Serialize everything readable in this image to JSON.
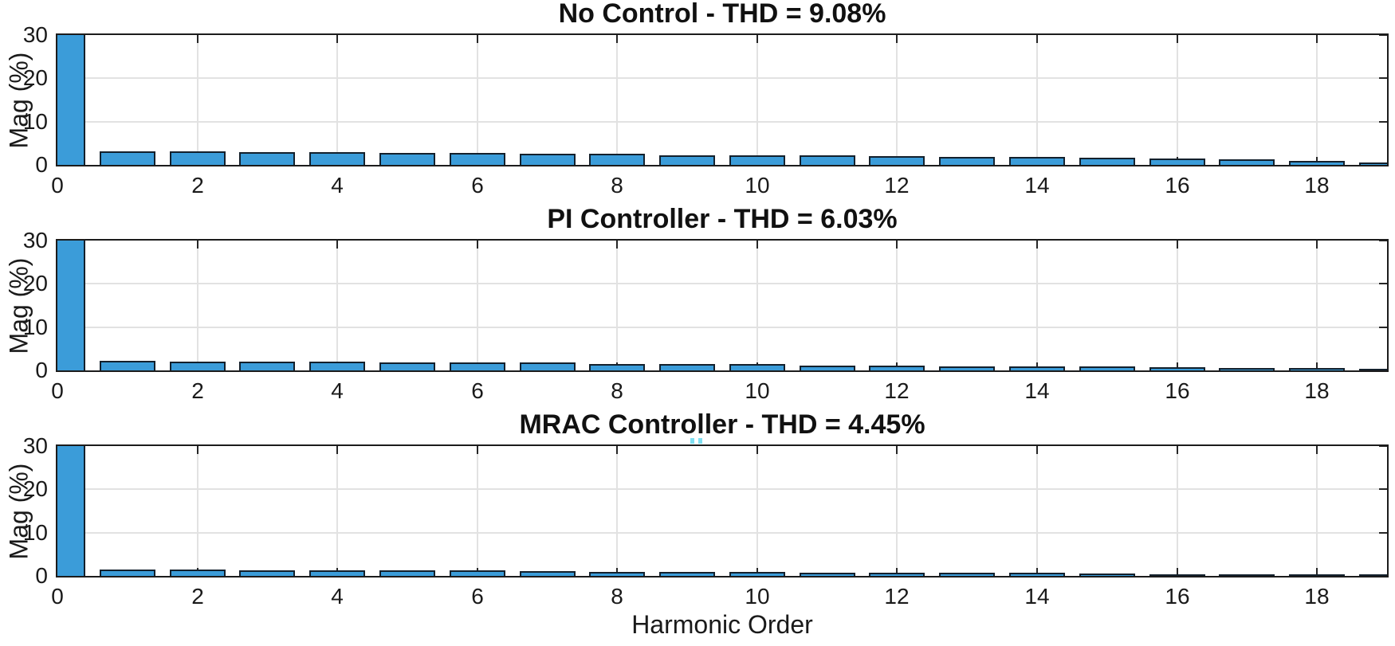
{
  "figure": {
    "background": "#ffffff",
    "xlabel": "Harmonic Order",
    "ylabel": "Mag (%)",
    "axis_color": "#1c1c1c",
    "grid_color": "#e2e2e2",
    "bar_fill": "#3b9cd9",
    "bar_edge": "#13202c",
    "text_color": "#1a1a1a"
  },
  "chart_data": [
    {
      "type": "bar",
      "title": "No Control - THD = 9.08%",
      "controller": "No Control",
      "thd_percent": "9.08",
      "ylabel": "Mag (%)",
      "xlabel": "Harmonic Order",
      "xlim": [
        0,
        19
      ],
      "ylim": [
        0,
        30
      ],
      "xticks": [
        0,
        2,
        4,
        6,
        8,
        10,
        12,
        14,
        16,
        18
      ],
      "yticks": [
        0,
        10,
        20,
        30
      ],
      "grid": true,
      "legend": "none",
      "bar_width": 0.8,
      "x": [
        0,
        1,
        2,
        3,
        4,
        5,
        6,
        7,
        8,
        9,
        10,
        11,
        12,
        13,
        14,
        15,
        16,
        17,
        18,
        19
      ],
      "values": [
        30,
        3.2,
        3.2,
        3.0,
        3.0,
        2.8,
        2.8,
        2.5,
        2.5,
        2.3,
        2.2,
        2.2,
        2.0,
        1.9,
        1.8,
        1.6,
        1.4,
        1.2,
        0.9,
        0.6
      ],
      "fundamental_clipped": true,
      "note": "bar at harmonic 0 extends beyond the y-axis limit and is clipped at 30; bars at 0 and 19 are cut by the axis edges"
    },
    {
      "type": "bar",
      "title": "PI Controller - THD = 6.03%",
      "controller": "PI Controller",
      "thd_percent": "6.03",
      "ylabel": "Mag (%)",
      "xlabel": "Harmonic Order",
      "xlim": [
        0,
        19
      ],
      "ylim": [
        0,
        30
      ],
      "xticks": [
        0,
        2,
        4,
        6,
        8,
        10,
        12,
        14,
        16,
        18
      ],
      "yticks": [
        0,
        10,
        20,
        30
      ],
      "grid": true,
      "legend": "none",
      "bar_width": 0.8,
      "x": [
        0,
        1,
        2,
        3,
        4,
        5,
        6,
        7,
        8,
        9,
        10,
        11,
        12,
        13,
        14,
        15,
        16,
        17,
        18,
        19
      ],
      "values": [
        30,
        2.2,
        2.1,
        2.1,
        2.0,
        1.9,
        1.8,
        1.8,
        1.5,
        1.4,
        1.4,
        1.1,
        1.1,
        1.0,
        1.0,
        0.9,
        0.7,
        0.6,
        0.5,
        0.3
      ],
      "fundamental_clipped": true,
      "note": "bar at harmonic 0 extends beyond the y-axis limit and is clipped at 30; bars at 0 and 19 are cut by the axis edges"
    },
    {
      "type": "bar",
      "title": "MRAC Controller - THD = 4.45%",
      "controller": "MRAC Controller",
      "thd_percent": "4.45",
      "ylabel": "Mag (%)",
      "xlabel": "Harmonic Order",
      "xlim": [
        0,
        19
      ],
      "ylim": [
        0,
        30
      ],
      "xticks": [
        0,
        2,
        4,
        6,
        8,
        10,
        12,
        14,
        16,
        18
      ],
      "yticks": [
        0,
        10,
        20,
        30
      ],
      "grid": true,
      "legend": "none",
      "bar_width": 0.8,
      "x": [
        0,
        1,
        2,
        3,
        4,
        5,
        6,
        7,
        8,
        9,
        10,
        11,
        12,
        13,
        14,
        15,
        16,
        17,
        18,
        19
      ],
      "values": [
        30,
        1.5,
        1.5,
        1.3,
        1.3,
        1.2,
        1.2,
        1.1,
        1.0,
        1.0,
        0.9,
        0.8,
        0.8,
        0.7,
        0.7,
        0.6,
        0.45,
        0.35,
        0.3,
        0.2
      ],
      "fundamental_clipped": true,
      "note": "bar at harmonic 0 extends beyond the y-axis limit and is clipped at 30; bars at 0 and 19 are cut by the axis edges"
    }
  ]
}
